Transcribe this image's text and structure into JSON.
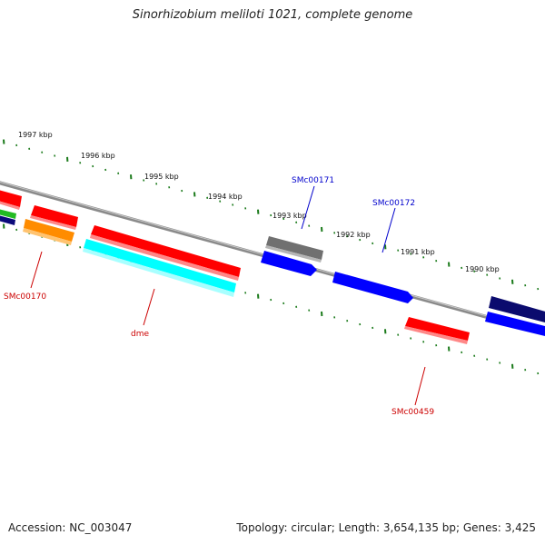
{
  "title": "Sinorhizobium meliloti 1021, complete genome",
  "footer": {
    "accession": "Accession: NC_003047",
    "summary": "Topology: circular; Length: 3,654,135 bp; Genes: 3,425"
  },
  "scale": {
    "ticks": [
      "1997 kbp",
      "1996 kbp",
      "1995 kbp",
      "1994 kbp",
      "1993 kbp",
      "1992 kbp",
      "1991 kbp",
      "1990 kbp"
    ],
    "tick_color": "#1a7a1a"
  },
  "genes": [
    {
      "name": "left-red",
      "color": "#ff0000"
    },
    {
      "name": "left-green",
      "color": "#22bb22"
    },
    {
      "name": "left-navy",
      "color": "#0b0b7a"
    },
    {
      "name": "red-a",
      "color": "#ff0000"
    },
    {
      "name": "orange",
      "color": "#ff8c00"
    },
    {
      "name": "dme-red",
      "color": "#ff0000"
    },
    {
      "name": "dme-cyan",
      "color": "#00ffff"
    },
    {
      "name": "gray",
      "color": "#707070"
    },
    {
      "name": "blue-a",
      "color": "#0000ff"
    },
    {
      "name": "blue-b",
      "color": "#0000ff"
    },
    {
      "name": "red-smc00459",
      "color": "#ff0000"
    },
    {
      "name": "navy-right",
      "color": "#0b0b6e"
    },
    {
      "name": "blue-right",
      "color": "#0000ff"
    }
  ],
  "labels": [
    {
      "text": "SMc00171",
      "color": "#0000cc"
    },
    {
      "text": "SMc00172",
      "color": "#0000cc"
    },
    {
      "text": "SMc00170",
      "color": "#cc0000"
    },
    {
      "text": "dme",
      "color": "#cc0000"
    },
    {
      "text": "SMc00459",
      "color": "#cc0000"
    }
  ]
}
